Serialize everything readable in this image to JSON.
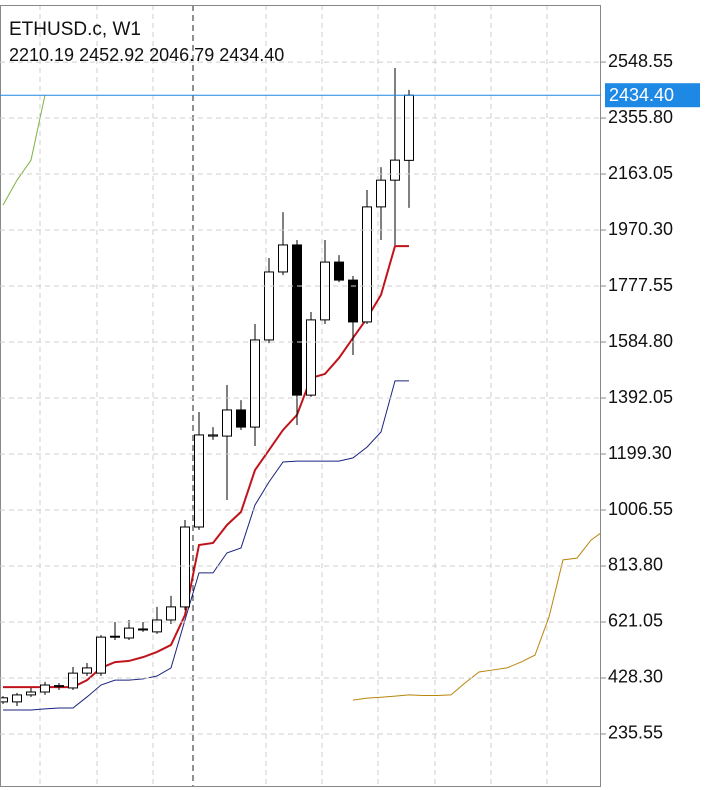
{
  "chart_data": {
    "type": "candlestick",
    "title": "ETHUSD.c, W1",
    "subtitle": "2210.19 2452.92 2046.79 2434.40",
    "candles": [
      {
        "open": 346,
        "high": 366,
        "low": 339,
        "close": 360
      },
      {
        "open": 346,
        "high": 377,
        "low": 332,
        "close": 370
      },
      {
        "open": 370,
        "high": 394,
        "low": 363,
        "close": 380
      },
      {
        "open": 380,
        "high": 415,
        "low": 370,
        "close": 404
      },
      {
        "open": 401,
        "high": 411,
        "low": 387,
        "close": 402
      },
      {
        "open": 394,
        "high": 466,
        "low": 387,
        "close": 445
      },
      {
        "open": 445,
        "high": 480,
        "low": 435,
        "close": 463
      },
      {
        "open": 445,
        "high": 576,
        "low": 435,
        "close": 569
      },
      {
        "open": 569,
        "high": 621,
        "low": 559,
        "close": 572
      },
      {
        "open": 566,
        "high": 628,
        "low": 559,
        "close": 600
      },
      {
        "open": 594,
        "high": 621,
        "low": 587,
        "close": 597
      },
      {
        "open": 587,
        "high": 673,
        "low": 580,
        "close": 628
      },
      {
        "open": 628,
        "high": 711,
        "low": 614,
        "close": 673
      },
      {
        "open": 673,
        "high": 972,
        "low": 662,
        "close": 948
      },
      {
        "open": 948,
        "high": 1344,
        "low": 938,
        "close": 1265
      },
      {
        "open": 1261,
        "high": 1292,
        "low": 1248,
        "close": 1265
      },
      {
        "open": 1261,
        "high": 1437,
        "low": 1041,
        "close": 1351
      },
      {
        "open": 1351,
        "high": 1385,
        "low": 1282,
        "close": 1292
      },
      {
        "open": 1292,
        "high": 1647,
        "low": 1227,
        "close": 1592
      },
      {
        "open": 1592,
        "high": 1874,
        "low": 1581,
        "close": 1826
      },
      {
        "open": 1826,
        "high": 2032,
        "low": 1815,
        "close": 1919
      },
      {
        "open": 1919,
        "high": 1936,
        "low": 1299,
        "close": 1402
      },
      {
        "open": 1402,
        "high": 1688,
        "low": 1396,
        "close": 1661
      },
      {
        "open": 1661,
        "high": 1936,
        "low": 1647,
        "close": 1860
      },
      {
        "open": 1860,
        "high": 1884,
        "low": 1791,
        "close": 1798
      },
      {
        "open": 1798,
        "high": 1812,
        "low": 1540,
        "close": 1654
      },
      {
        "open": 1654,
        "high": 2108,
        "low": 1647,
        "close": 2050
      },
      {
        "open": 2050,
        "high": 2187,
        "low": 1936,
        "close": 2142
      },
      {
        "open": 2142,
        "high": 2528,
        "low": 1919,
        "close": 2211
      },
      {
        "open": 2210.19,
        "high": 2452.92,
        "low": 2046.79,
        "close": 2434.4
      }
    ],
    "lines": [
      {
        "color": "#c0141c",
        "width": 2,
        "values": [
          397,
          397,
          397,
          397,
          397,
          397,
          421,
          463,
          483,
          487,
          500,
          518,
          542,
          645,
          886,
          893,
          955,
          1000,
          1144,
          1213,
          1282,
          1334,
          1461,
          1475,
          1530,
          1599,
          1667,
          1747,
          1915,
          1915,
          null,
          null,
          null,
          null,
          null,
          null,
          null,
          null,
          null,
          null,
          null,
          null,
          null,
          null
        ]
      },
      {
        "color": "#1a237e",
        "width": 1,
        "values": [
          318,
          318,
          318,
          322,
          325,
          325,
          363,
          404,
          421,
          421,
          425,
          435,
          463,
          628,
          790,
          790,
          859,
          876,
          1024,
          1103,
          1172,
          1175,
          1175,
          1175,
          1175,
          1186,
          1223,
          1275,
          1451,
          1451,
          null,
          null,
          null,
          null,
          null,
          null,
          null,
          null,
          null,
          null,
          null,
          null,
          null,
          null
        ]
      },
      {
        "color": "#7cb342",
        "width": 1,
        "values": [
          2056,
          2142,
          2211,
          2435,
          null,
          null,
          null,
          null,
          null,
          null,
          null,
          null,
          null,
          null,
          null,
          null,
          null,
          null,
          null,
          null,
          null,
          null,
          null,
          null,
          null,
          null,
          null,
          null,
          null,
          null,
          null,
          null,
          null,
          null,
          null,
          null,
          null,
          null,
          null,
          null,
          null,
          null,
          null,
          null
        ]
      },
      {
        "color": "#b8860b",
        "width": 1,
        "values": [
          null,
          null,
          null,
          null,
          null,
          null,
          null,
          null,
          null,
          null,
          null,
          null,
          null,
          null,
          null,
          null,
          null,
          null,
          null,
          null,
          null,
          null,
          null,
          null,
          null,
          352,
          359,
          362,
          366,
          370,
          368,
          368,
          370,
          411,
          449,
          456,
          463,
          483,
          507,
          638,
          835,
          841,
          903,
          938
        ]
      }
    ],
    "current_price": {
      "value": 2434.4,
      "label": "2434.40",
      "color": "#1e88e5"
    },
    "ylim": [
      53,
      2745
    ],
    "yticks": [
      2548.55,
      {
        "value": 2355.8,
        "label": "2355.80"
      },
      2163.05,
      {
        "value": 1970.3,
        "label": "1970.30"
      },
      1777.55,
      {
        "value": 1584.8,
        "label": "1584.80"
      },
      1392.05,
      {
        "value": 1199.3,
        "label": "1199.30"
      },
      1006.55,
      {
        "value": 813.8,
        "label": "813.80"
      },
      621.05,
      {
        "value": 428.3,
        "label": "428.30"
      },
      235.55
    ],
    "grid": true
  }
}
